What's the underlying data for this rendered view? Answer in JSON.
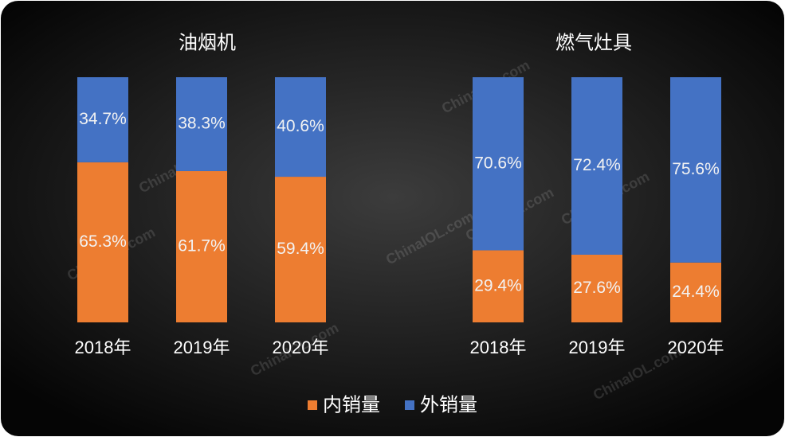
{
  "chart_data": [
    {
      "type": "bar",
      "stacked": true,
      "title": "油烟机",
      "categories": [
        "2018年",
        "2019年",
        "2020年"
      ],
      "ylim": [
        0,
        100
      ],
      "series": [
        {
          "name": "内销量",
          "color": "#ed7d31",
          "values": [
            65.3,
            61.7,
            59.4
          ],
          "value_labels": [
            "65.3%",
            "61.7%",
            "59.4%"
          ]
        },
        {
          "name": "外销量",
          "color": "#4472c4",
          "values": [
            34.7,
            38.3,
            40.6
          ],
          "value_labels": [
            "34.7%",
            "38.3%",
            "40.6%"
          ]
        }
      ]
    },
    {
      "type": "bar",
      "stacked": true,
      "title": "燃气灶具",
      "categories": [
        "2018年",
        "2019年",
        "2020年"
      ],
      "ylim": [
        0,
        100
      ],
      "series": [
        {
          "color": "#ed7d31",
          "values": [
            29.4,
            27.6,
            24.4
          ],
          "value_labels": [
            "29.4%",
            "27.6%",
            "24.4%"
          ]
        },
        {
          "color": "#4472c4",
          "values": [
            70.6,
            72.4,
            75.6
          ],
          "value_labels": [
            "70.6%",
            "72.4%",
            "75.6%"
          ]
        }
      ]
    }
  ],
  "watermark": "ChinaIOL.com"
}
